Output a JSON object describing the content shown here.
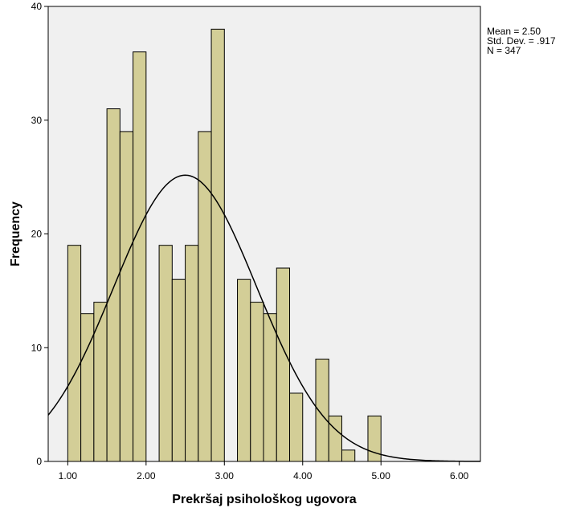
{
  "chart_data": {
    "type": "bar",
    "subtype": "histogram",
    "xlabel": "Prekršaj psihološkog ugovora",
    "ylabel": "Frequency",
    "xlim": [
      0.75,
      6.27
    ],
    "ylim": [
      0,
      40
    ],
    "x_ticks": [
      1.0,
      2.0,
      3.0,
      4.0,
      5.0,
      6.0
    ],
    "x_tick_labels": [
      "1.00",
      "2.00",
      "3.00",
      "4.00",
      "5.00",
      "6.00"
    ],
    "y_ticks": [
      0,
      10,
      20,
      30,
      40
    ],
    "y_tick_labels": [
      "0",
      "10",
      "20",
      "30",
      "40"
    ],
    "bin_width": 0.1667,
    "bins": [
      {
        "start": 1.0,
        "value": 19
      },
      {
        "start": 1.1667,
        "value": 13
      },
      {
        "start": 1.3333,
        "value": 14
      },
      {
        "start": 1.5,
        "value": 31
      },
      {
        "start": 1.6667,
        "value": 29
      },
      {
        "start": 1.8333,
        "value": 36
      },
      {
        "start": 2.1667,
        "value": 19
      },
      {
        "start": 2.3333,
        "value": 16
      },
      {
        "start": 2.5,
        "value": 19
      },
      {
        "start": 2.6667,
        "value": 29
      },
      {
        "start": 2.8333,
        "value": 38
      },
      {
        "start": 3.1667,
        "value": 16
      },
      {
        "start": 3.3333,
        "value": 14
      },
      {
        "start": 3.5,
        "value": 13
      },
      {
        "start": 3.6667,
        "value": 17
      },
      {
        "start": 3.8333,
        "value": 6
      },
      {
        "start": 4.1667,
        "value": 9
      },
      {
        "start": 4.3333,
        "value": 4
      },
      {
        "start": 4.5,
        "value": 1
      },
      {
        "start": 4.8333,
        "value": 4
      }
    ],
    "normal_curve": {
      "mean": 2.5,
      "sd": 0.917,
      "n": 347
    },
    "stats_text": [
      "Mean = 2.50",
      "Std. Dev. = .917",
      "N = 347"
    ],
    "grid": false,
    "colors": {
      "plot_background": "#f0f0f0",
      "bar_fill": "#d3ce97",
      "bar_stroke": "#000000",
      "curve": "#000000"
    }
  }
}
